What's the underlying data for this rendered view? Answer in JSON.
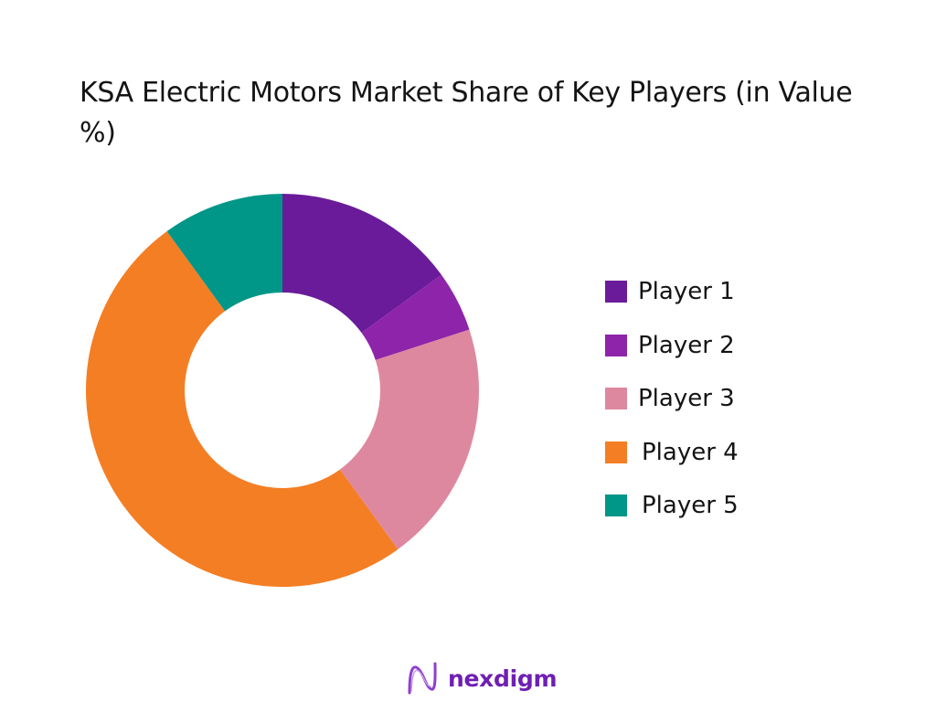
{
  "title": "KSA Electric Motors Market Share of Key Players (in Value %)",
  "legend": {
    "items": [
      {
        "label": "Player 1",
        "color": "#6a1b9a"
      },
      {
        "label": "Player 2",
        "color": "#8e24aa"
      },
      {
        "label": "Player 3",
        "color": "#de88a0"
      },
      {
        "label": "Player 4",
        "color": "#f47e24"
      },
      {
        "label": "Player 5",
        "color": "#009688"
      }
    ]
  },
  "logo": {
    "text": "nexdigm",
    "icon": "nexdigm-wave-icon",
    "color": "#6f1fb3"
  },
  "chart_data": {
    "type": "pie",
    "subtype": "donut",
    "title": "KSA Electric Motors Market Share of Key Players (in Value %)",
    "categories": [
      "Player 1",
      "Player 2",
      "Player 3",
      "Player 4",
      "Player 5"
    ],
    "values": [
      15,
      5,
      20,
      50,
      10
    ],
    "unit": "%",
    "colors": [
      "#6a1b9a",
      "#8e24aa",
      "#de88a0",
      "#f47e24",
      "#009688"
    ],
    "start_angle_deg": 0,
    "direction": "clockwise",
    "legend_position": "right",
    "center": [
      309,
      427
    ],
    "outer_radius": 215,
    "inner_radius": 107
  }
}
